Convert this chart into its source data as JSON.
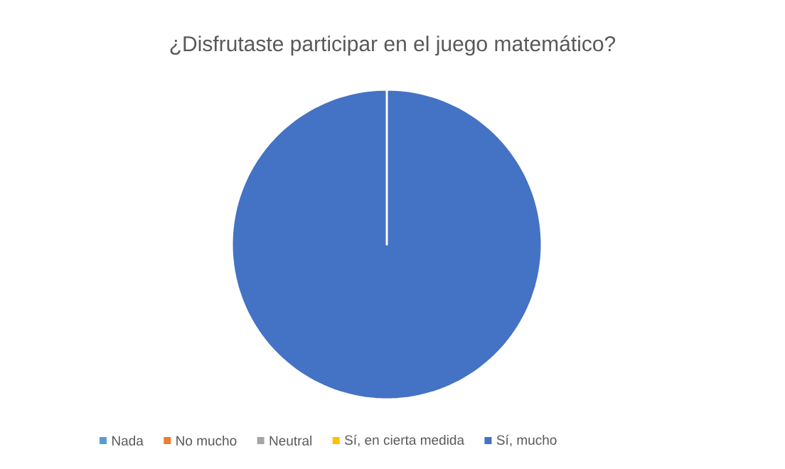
{
  "chart_data": {
    "type": "pie",
    "title": "¿Disfrutaste participar en el juego matemático?",
    "categories": [
      "Nada",
      "No mucho",
      "Neutral",
      "Sí, en cierta medida",
      "Sí, mucho"
    ],
    "values": [
      0,
      0,
      0,
      0,
      100
    ],
    "colors": [
      "#5b9bd5",
      "#ed7d31",
      "#a5a5a5",
      "#ffc000",
      "#4472c4"
    ],
    "legend": "bottom"
  }
}
